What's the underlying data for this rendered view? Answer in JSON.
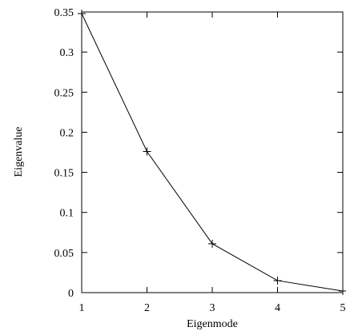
{
  "chart_data": {
    "type": "line",
    "x_label": "Eigenmode",
    "y_label": "Eigenvalue",
    "x": [
      1,
      2,
      3,
      4,
      5
    ],
    "series": [
      {
        "color": "#000000",
        "values": [
          0.348,
          0.176,
          0.061,
          0.015,
          0.002
        ]
      }
    ],
    "xlim": [
      1,
      5
    ],
    "xticks": [
      1,
      2,
      3,
      4,
      5
    ],
    "ylim": [
      0,
      0.35
    ],
    "yticks": [
      0,
      0.05,
      0.1,
      0.15,
      0.2,
      0.25,
      0.3,
      0.35
    ],
    "grid": false,
    "marker": "+"
  }
}
